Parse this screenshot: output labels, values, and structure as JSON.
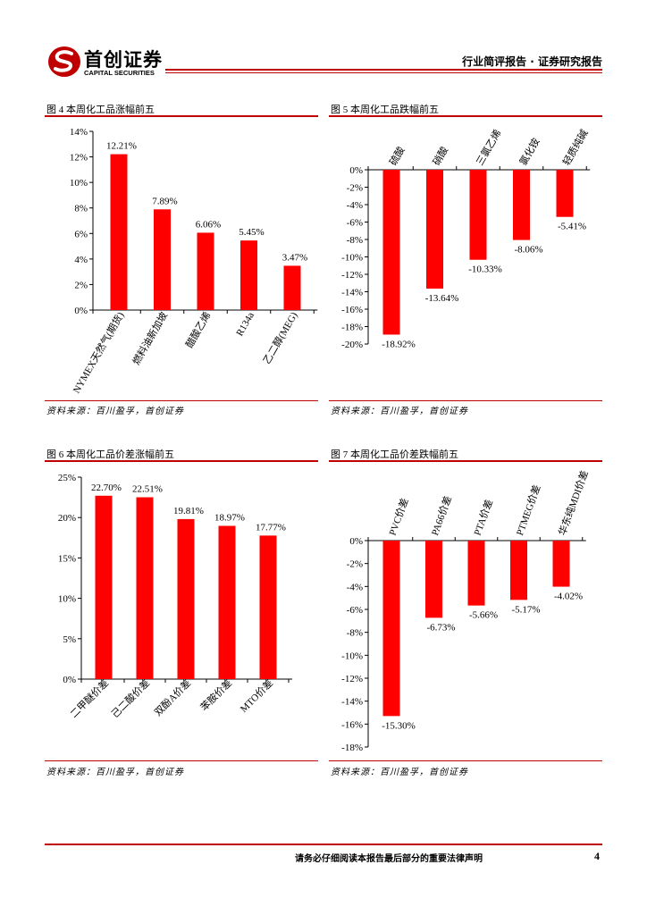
{
  "header": {
    "logo_cn": "首创证券",
    "logo_en": "CAPITAL SECURITIES",
    "report_type": "行业简评报告 · 证券研究报告"
  },
  "colors": {
    "bar": "#ff0000",
    "accent": "#c00000"
  },
  "figures": [
    {
      "title": "图 4 本周化工品涨幅前五",
      "source": "资料来源：百川盈孚，首创证券",
      "chart_data": {
        "type": "bar",
        "title": "本周化工品涨幅前五",
        "categories": [
          "NYMEX天然气(期货)",
          "燃料油新加坡",
          "醋酸乙烯",
          "R134a",
          "乙二醇(MEG)"
        ],
        "values": [
          12.21,
          7.89,
          6.06,
          5.45,
          3.47
        ],
        "value_labels": [
          "12.21%",
          "7.89%",
          "6.06%",
          "5.45%",
          "3.47%"
        ],
        "ylim": [
          0,
          14
        ],
        "yticks": [
          0,
          2,
          4,
          6,
          8,
          10,
          12,
          14
        ],
        "ytick_labels": [
          "0%",
          "2%",
          "4%",
          "6%",
          "8%",
          "10%",
          "12%",
          "14%"
        ],
        "xlabel": "",
        "ylabel": ""
      }
    },
    {
      "title": "图 5 本周化工品跌幅前五",
      "source": "资料来源：百川盈孚，首创证券",
      "chart_data": {
        "type": "bar",
        "title": "本周化工品跌幅前五",
        "categories": [
          "硫酸",
          "硝酸",
          "三氯乙烯",
          "氯化铵",
          "轻质纯碱"
        ],
        "values": [
          -18.92,
          -13.64,
          -10.33,
          -8.06,
          -5.41
        ],
        "value_labels": [
          "-18.92%",
          "-13.64%",
          "-10.33%",
          "-8.06%",
          "-5.41%"
        ],
        "ylim": [
          -20,
          0
        ],
        "yticks": [
          0,
          -2,
          -4,
          -6,
          -8,
          -10,
          -12,
          -14,
          -16,
          -18,
          -20
        ],
        "ytick_labels": [
          "0%",
          "-2%",
          "-4%",
          "-6%",
          "-8%",
          "-10%",
          "-12%",
          "-14%",
          "-16%",
          "-18%",
          "-20%"
        ],
        "xlabel": "",
        "ylabel": ""
      }
    },
    {
      "title": "图 6 本周化工品价差涨幅前五",
      "source": "资料来源：百川盈孚，首创证券",
      "chart_data": {
        "type": "bar",
        "title": "本周化工品价差涨幅前五",
        "categories": [
          "二甲醚价差",
          "己二酸价差",
          "双酚A价差",
          "苯胺价差",
          "MTO价差"
        ],
        "values": [
          22.7,
          22.51,
          19.81,
          18.97,
          17.77
        ],
        "value_labels": [
          "22.70%",
          "22.51%",
          "19.81%",
          "18.97%",
          "17.77%"
        ],
        "ylim": [
          0,
          25
        ],
        "yticks": [
          0,
          5,
          10,
          15,
          20,
          25
        ],
        "ytick_labels": [
          "0%",
          "5%",
          "10%",
          "15%",
          "20%",
          "25%"
        ],
        "xlabel": "",
        "ylabel": ""
      }
    },
    {
      "title": "图 7 本周化工品价差跌幅前五",
      "source": "资料来源：百川盈孚，首创证券",
      "chart_data": {
        "type": "bar",
        "title": "本周化工品价差跌幅前五",
        "categories": [
          "PVC价差",
          "PA66价差",
          "PTA价差",
          "PTMEG价差",
          "华东纯MDI价差"
        ],
        "values": [
          -15.3,
          -6.73,
          -5.66,
          -5.17,
          -4.02
        ],
        "value_labels": [
          "-15.30%",
          "-6.73%",
          "-5.66%",
          "-5.17%",
          "-4.02%"
        ],
        "ylim": [
          -18,
          0
        ],
        "yticks": [
          0,
          -2,
          -4,
          -6,
          -8,
          -10,
          -12,
          -14,
          -16,
          -18
        ],
        "ytick_labels": [
          "0%",
          "-2%",
          "-4%",
          "-6%",
          "-8%",
          "-10%",
          "-12%",
          "-14%",
          "-16%",
          "-18%"
        ],
        "xlabel": "",
        "ylabel": ""
      }
    }
  ],
  "footer": {
    "disclaimer": "请务必仔细阅读本报告最后部分的重要法律声明",
    "page_number": "4"
  }
}
